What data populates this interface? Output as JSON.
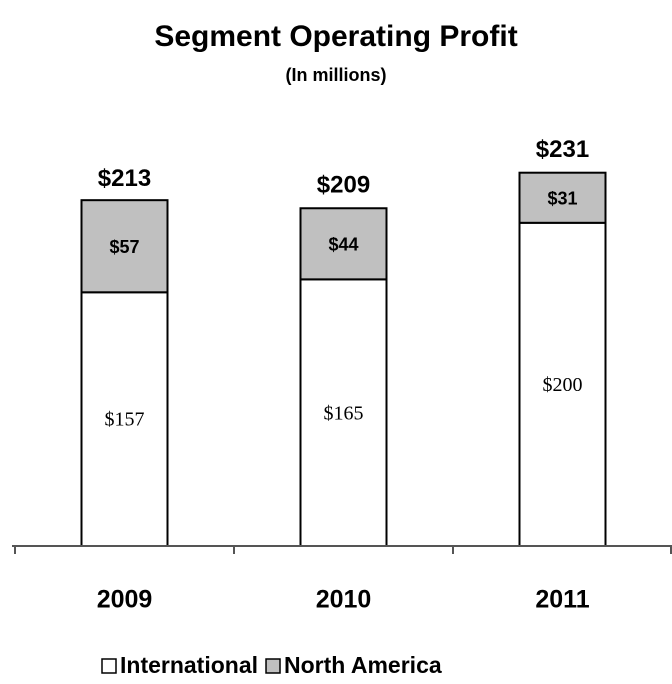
{
  "chart_data": {
    "type": "stacked_bar",
    "title": "Segment Operating Profit",
    "subtitle": "(In millions)",
    "categories": [
      "2009",
      "2010",
      "2011"
    ],
    "series": [
      {
        "name": "International",
        "color": "#ffffff",
        "values": [
          157,
          165,
          200
        ],
        "value_labels": [
          "$157",
          "$165",
          "$200"
        ]
      },
      {
        "name": "North America",
        "color": "#c0c0c0",
        "values": [
          57,
          44,
          31
        ],
        "value_labels": [
          "$57",
          "$44",
          "$31"
        ]
      }
    ],
    "totals": {
      "values": [
        213,
        209,
        231
      ],
      "value_labels": [
        "$213",
        "$209",
        "$231"
      ]
    },
    "ylim": [
      0,
      250
    ],
    "legend": "bottom"
  }
}
